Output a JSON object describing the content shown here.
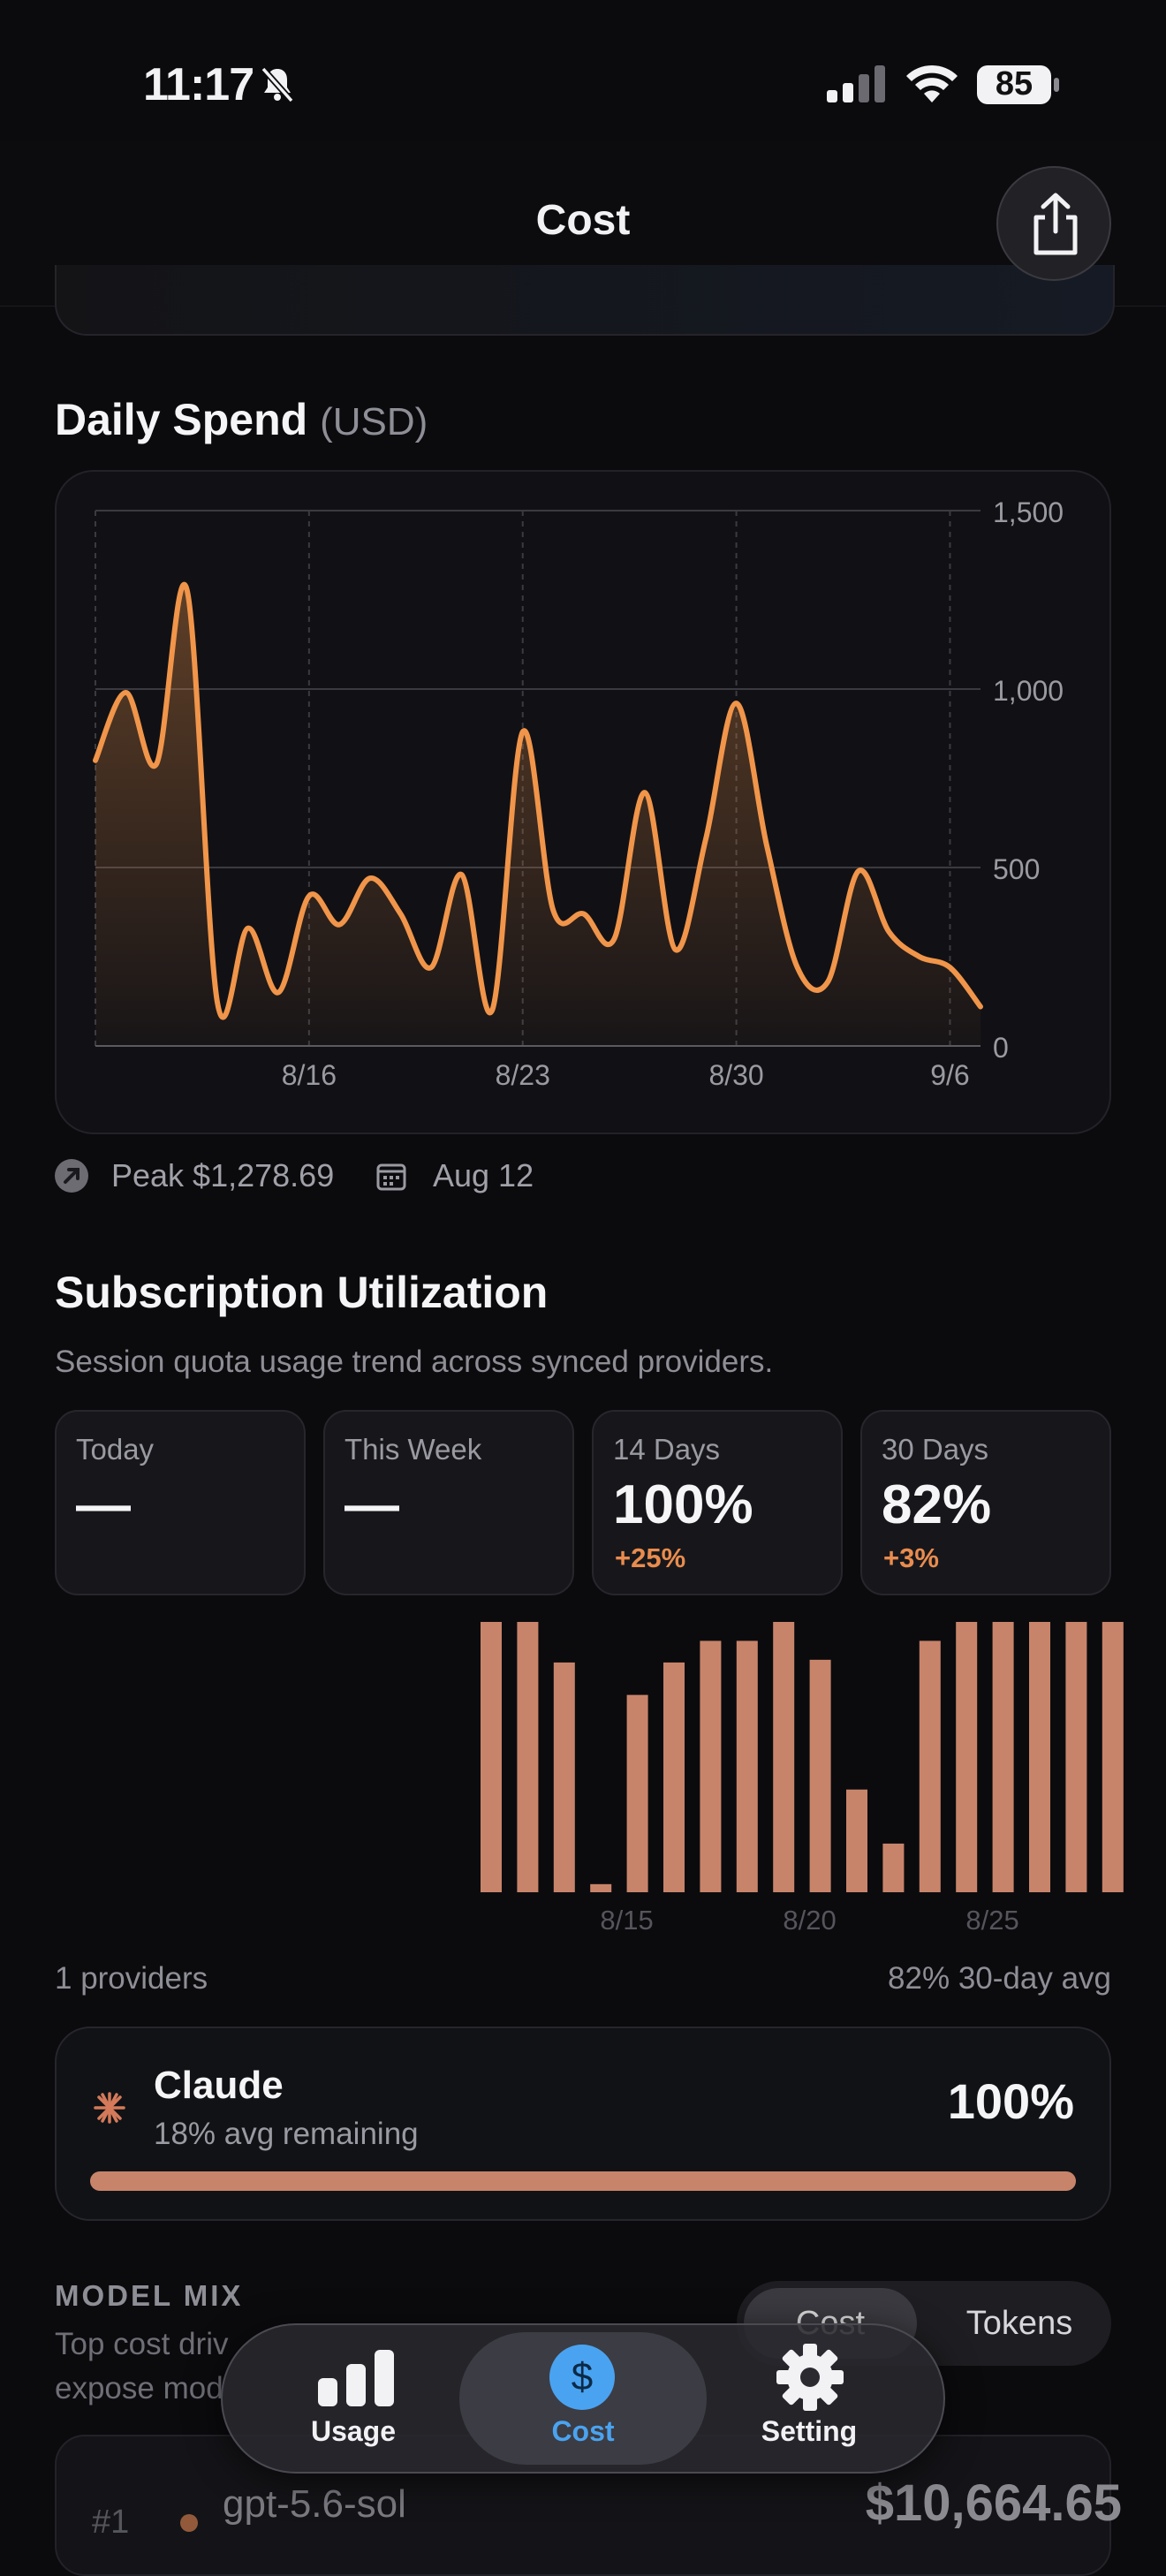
{
  "status_bar": {
    "time": "11:17",
    "battery": "85"
  },
  "header": {
    "title": "Cost"
  },
  "daily_spend": {
    "title": "Daily Spend",
    "unit": "(USD)",
    "peak_label": "Peak $1,278.69",
    "peak_date": "Aug 12"
  },
  "chart_data": {
    "type": "area",
    "title": "Daily Spend",
    "ylim": [
      0,
      1500
    ],
    "y_ticks": [
      "0",
      "500",
      "1,000",
      "1,500"
    ],
    "x_ticks": [
      "8/16",
      "8/23",
      "8/30",
      "9/6"
    ],
    "x": [
      "8/9",
      "8/10",
      "8/11",
      "8/12",
      "8/13",
      "8/14",
      "8/15",
      "8/16",
      "8/17",
      "8/18",
      "8/19",
      "8/20",
      "8/21",
      "8/22",
      "8/23",
      "8/24",
      "8/25",
      "8/26",
      "8/27",
      "8/28",
      "8/29",
      "8/30",
      "8/31",
      "9/1",
      "9/2",
      "9/3",
      "9/4",
      "9/5",
      "9/6",
      "9/7"
    ],
    "values": [
      800,
      990,
      790,
      1278,
      120,
      330,
      150,
      420,
      340,
      470,
      370,
      220,
      480,
      100,
      880,
      380,
      370,
      300,
      710,
      270,
      580,
      960,
      560,
      220,
      180,
      490,
      320,
      250,
      220,
      110
    ],
    "grid": true,
    "color": "#f0954a"
  },
  "subscription": {
    "title": "Subscription Utilization",
    "description": "Session quota usage trend across synced providers.",
    "stats": [
      {
        "label": "Today",
        "value": "—",
        "delta": ""
      },
      {
        "label": "This Week",
        "value": "—",
        "delta": ""
      },
      {
        "label": "14 Days",
        "value": "100%",
        "delta": "+25%"
      },
      {
        "label": "30 Days",
        "value": "82%",
        "delta": "+3%"
      }
    ],
    "bars_chart": {
      "type": "bar",
      "x_ticks": [
        "8/15",
        "8/20",
        "8/25"
      ],
      "values": [
        100,
        100,
        85,
        3,
        73,
        85,
        93,
        93,
        100,
        86,
        38,
        18,
        93,
        100,
        100,
        100,
        100,
        100
      ],
      "ylim": [
        0,
        100
      ],
      "color": "#c8846a"
    },
    "providers_count": "1 providers",
    "avg_label": "82% 30-day avg",
    "provider": {
      "name": "Claude",
      "subtitle": "18% avg remaining",
      "percent": "100%",
      "fill": 1.0
    }
  },
  "model_mix": {
    "title": "MODEL MIX",
    "desc_line1": "Top cost driv",
    "desc_line2": "expose mod",
    "toggle": {
      "cost": "Cost",
      "tokens": "Tokens"
    },
    "first_row": {
      "rank": "#1",
      "model": "gpt-5.6-sol",
      "amount": "$10,664.65"
    }
  },
  "tabbar": {
    "tabs": [
      {
        "label": "Usage"
      },
      {
        "label": "Cost"
      },
      {
        "label": "Setting"
      }
    ]
  }
}
